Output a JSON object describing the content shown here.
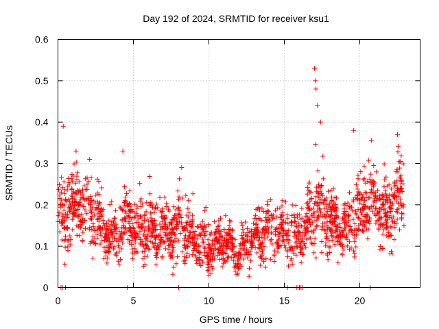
{
  "chart_data": {
    "type": "scatter",
    "title": "Day 192 of 2024, SRMTID for receiver ksu1",
    "xlabel": "GPS time / hours",
    "ylabel": "SRMTID / TECUs",
    "xlim": [
      0,
      24
    ],
    "ylim": [
      0,
      0.6
    ],
    "grid": true,
    "marker": "+",
    "color": "#ff0000",
    "x_ticks": [
      0,
      5,
      10,
      15,
      20
    ],
    "x_tick_labels": [
      "0",
      "5",
      "10",
      "15",
      "20"
    ],
    "y_ticks": [
      0,
      0.1,
      0.2,
      0.3,
      0.4,
      0.5,
      0.6
    ],
    "y_tick_labels": [
      "0",
      "0.1",
      "0.2",
      "0.3",
      "0.4",
      "0.5",
      "0.6"
    ],
    "series": [
      {
        "name": "SRMTID",
        "envelope_hours": [
          0,
          0.5,
          1,
          1.5,
          2,
          2.5,
          3,
          3.5,
          4,
          4.5,
          5,
          5.5,
          6,
          6.5,
          7,
          7.5,
          8,
          8.5,
          9,
          9.5,
          10,
          10.5,
          11,
          11.5,
          12,
          12.5,
          13,
          13.5,
          14,
          14.5,
          15,
          15.5,
          16,
          16.5,
          17,
          17.5,
          18,
          18.5,
          19,
          19.5,
          20,
          20.5,
          21,
          21.5,
          22,
          22.5,
          23
        ],
        "typical": [
          0.18,
          0.18,
          0.19,
          0.2,
          0.18,
          0.17,
          0.15,
          0.12,
          0.12,
          0.17,
          0.15,
          0.13,
          0.14,
          0.13,
          0.14,
          0.13,
          0.13,
          0.14,
          0.12,
          0.1,
          0.1,
          0.11,
          0.12,
          0.09,
          0.08,
          0.1,
          0.11,
          0.13,
          0.14,
          0.14,
          0.13,
          0.12,
          0.14,
          0.15,
          0.18,
          0.18,
          0.17,
          0.14,
          0.14,
          0.15,
          0.19,
          0.2,
          0.2,
          0.18,
          0.17,
          0.22,
          0.22
        ],
        "spread": [
          0.05,
          0.07,
          0.06,
          0.06,
          0.06,
          0.06,
          0.05,
          0.04,
          0.05,
          0.06,
          0.05,
          0.05,
          0.05,
          0.05,
          0.05,
          0.05,
          0.06,
          0.05,
          0.04,
          0.04,
          0.04,
          0.04,
          0.04,
          0.03,
          0.03,
          0.04,
          0.04,
          0.05,
          0.05,
          0.05,
          0.04,
          0.05,
          0.05,
          0.05,
          0.07,
          0.07,
          0.06,
          0.05,
          0.05,
          0.06,
          0.07,
          0.06,
          0.06,
          0.06,
          0.06,
          0.07,
          0.06
        ],
        "peaks": [
          {
            "x": 0.35,
            "y": 0.39
          },
          {
            "x": 1.2,
            "y": 0.33
          },
          {
            "x": 2.1,
            "y": 0.31
          },
          {
            "x": 4.3,
            "y": 0.33
          },
          {
            "x": 8.2,
            "y": 0.29
          },
          {
            "x": 17.0,
            "y": 0.53
          },
          {
            "x": 17.05,
            "y": 0.5
          },
          {
            "x": 17.1,
            "y": 0.48
          },
          {
            "x": 17.2,
            "y": 0.44
          },
          {
            "x": 17.4,
            "y": 0.4
          },
          {
            "x": 19.6,
            "y": 0.38
          },
          {
            "x": 22.5,
            "y": 0.37
          },
          {
            "x": 10.0,
            "y": 0.03
          }
        ],
        "zero_hours": [
          0.2,
          0.3,
          0.5,
          4.6,
          8.0,
          13.3,
          15.2,
          15.8,
          15.9,
          16.0,
          16.1,
          16.2,
          20.7
        ]
      }
    ]
  }
}
